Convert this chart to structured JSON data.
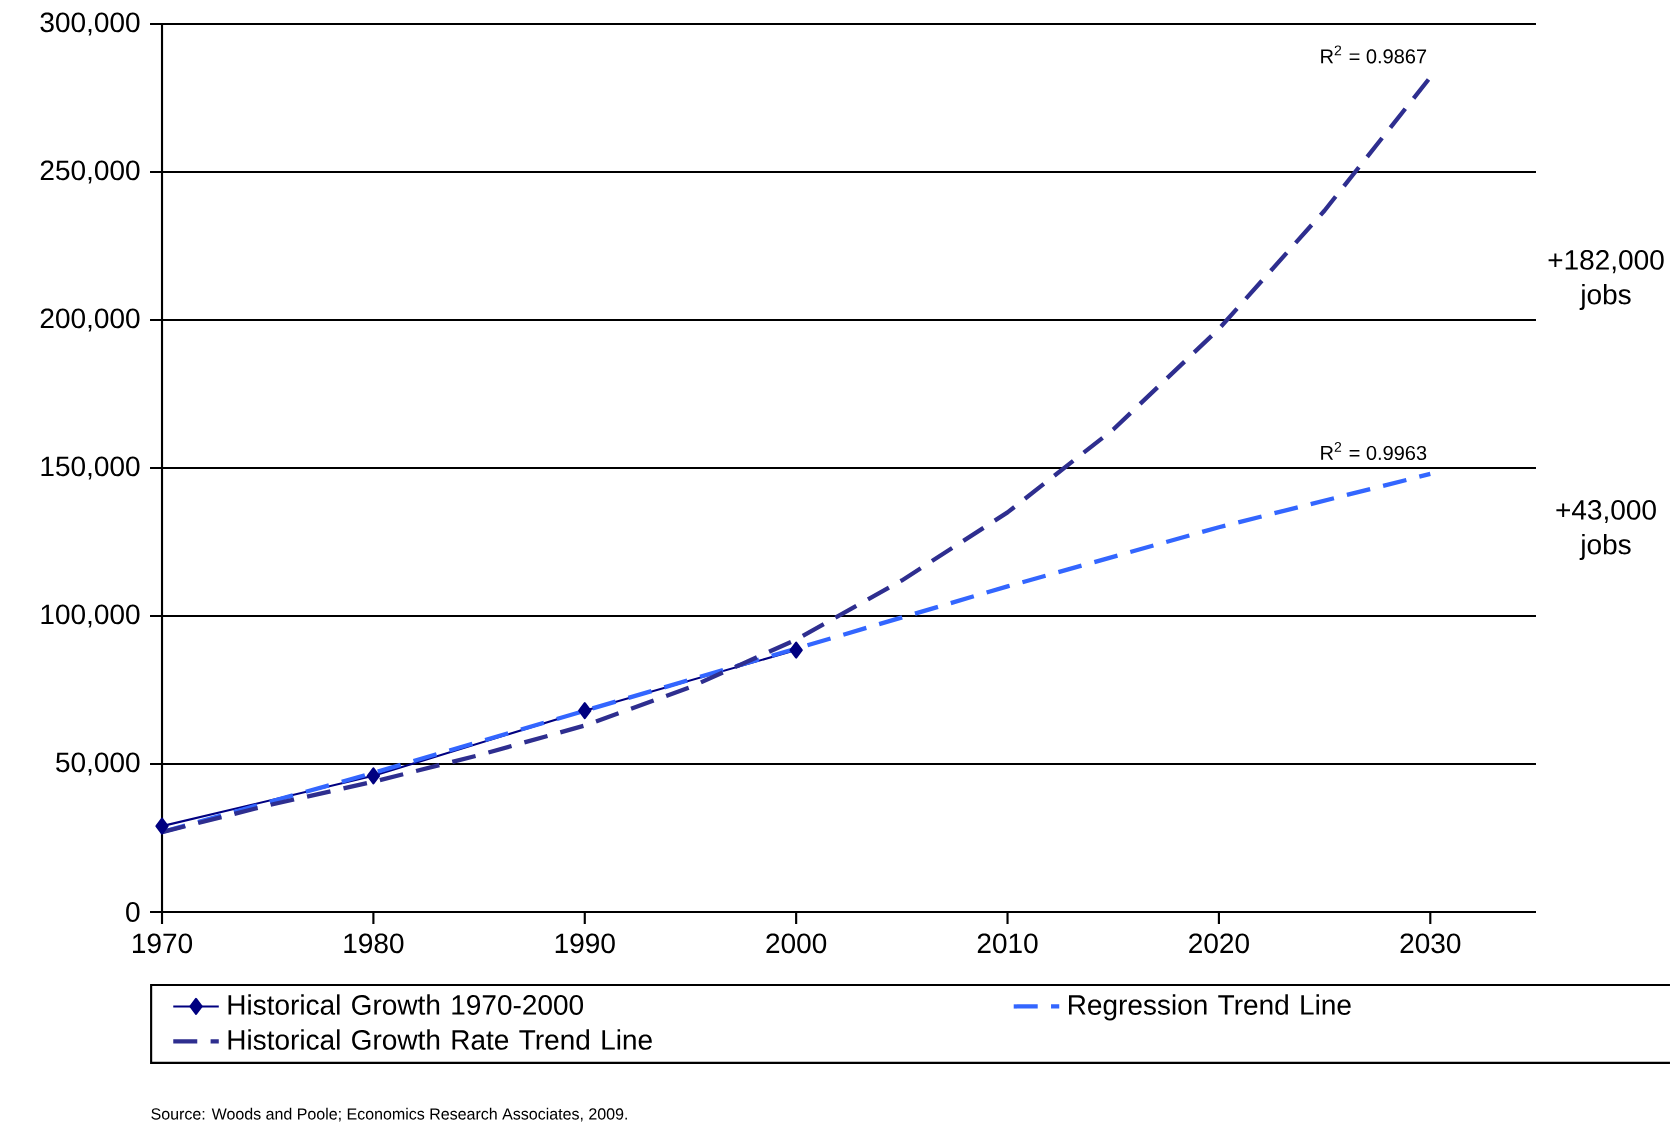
{
  "chart_data": {
    "type": "line",
    "xlim": [
      1970,
      2035
    ],
    "xticks": [
      1970,
      1980,
      1990,
      2000,
      2010,
      2020,
      2030
    ],
    "ylim": [
      0,
      300000
    ],
    "yticks": [
      {
        "value": 0,
        "label": "0"
      },
      {
        "value": 50000,
        "label": "50,000"
      },
      {
        "value": 100000,
        "label": "100,000"
      },
      {
        "value": 150000,
        "label": "150,000"
      },
      {
        "value": 200000,
        "label": "200,000"
      },
      {
        "value": 250000,
        "label": "250,000"
      },
      {
        "value": 300000,
        "label": "300,000"
      }
    ],
    "grid": "y",
    "legend": "bottom",
    "series": [
      {
        "name": "Historical Growth 1970-2000",
        "color": "#000080",
        "marker": "diamond",
        "line_style": "solid",
        "x": [
          1970,
          1980,
          1990,
          2000
        ],
        "values": [
          29000,
          46000,
          68000,
          88500
        ]
      },
      {
        "name": "Regression Trend Line",
        "color": "#3366ff",
        "marker": "none",
        "line_style": "dashed",
        "x": [
          1970,
          1980,
          1990,
          2000,
          2010,
          2020,
          2030
        ],
        "values": [
          27000,
          47000,
          68000,
          89000,
          110000,
          130000,
          148000
        ]
      },
      {
        "name": "Historical Growth Rate Trend Line",
        "color": "#2e2e8f",
        "marker": "none",
        "line_style": "dashed",
        "x": [
          1970,
          1975,
          1980,
          1985,
          1990,
          1995,
          2000,
          2005,
          2010,
          2015,
          2020,
          2025,
          2030
        ],
        "values": [
          27000,
          36000,
          44000,
          53000,
          63000,
          76000,
          92000,
          112000,
          135000,
          163000,
          197000,
          237000,
          282000
        ]
      }
    ],
    "annotations": [
      {
        "text": "R$^{2}$ = 0.9867",
        "x": 2030,
        "y": 282000
      },
      {
        "text": "R$^{2}$ = 0.9963",
        "x": 2030,
        "y": 148000
      },
      "+182,000 jobs",
      "+43,000 jobs",
      "Source: Woods and Poole; Economics Research Associates, 2009."
    ]
  }
}
